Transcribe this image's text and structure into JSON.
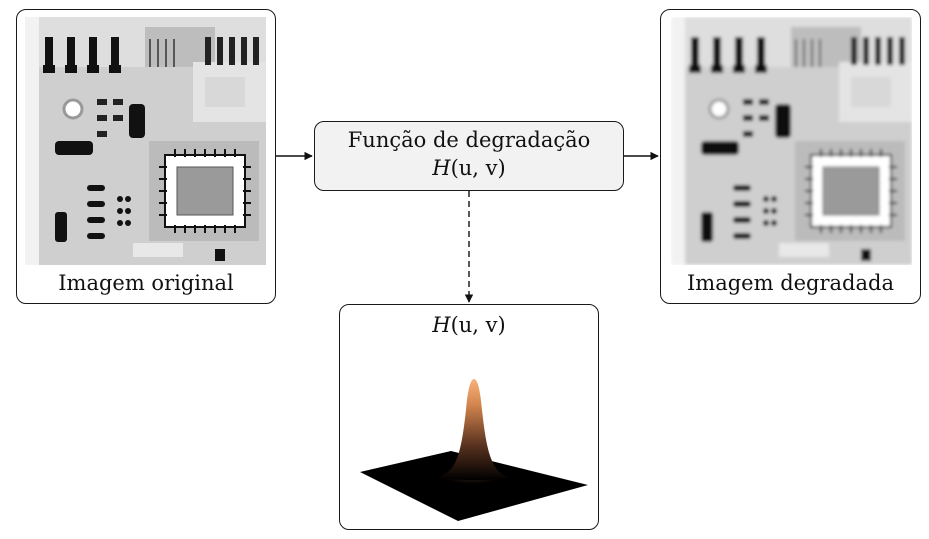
{
  "original": {
    "caption": "Imagem original"
  },
  "degradation": {
    "title": "Função de degradação",
    "formula_fn": "H",
    "formula_args": "(u, v)"
  },
  "degraded": {
    "caption": "Imagem degradada"
  },
  "plot": {
    "formula_fn": "H",
    "formula_args": "(u, v)"
  },
  "colors": {
    "box_fill": "#f2f2f2",
    "stroke": "#1a1a1a",
    "peak": "#f2a063",
    "base": "#000000"
  }
}
